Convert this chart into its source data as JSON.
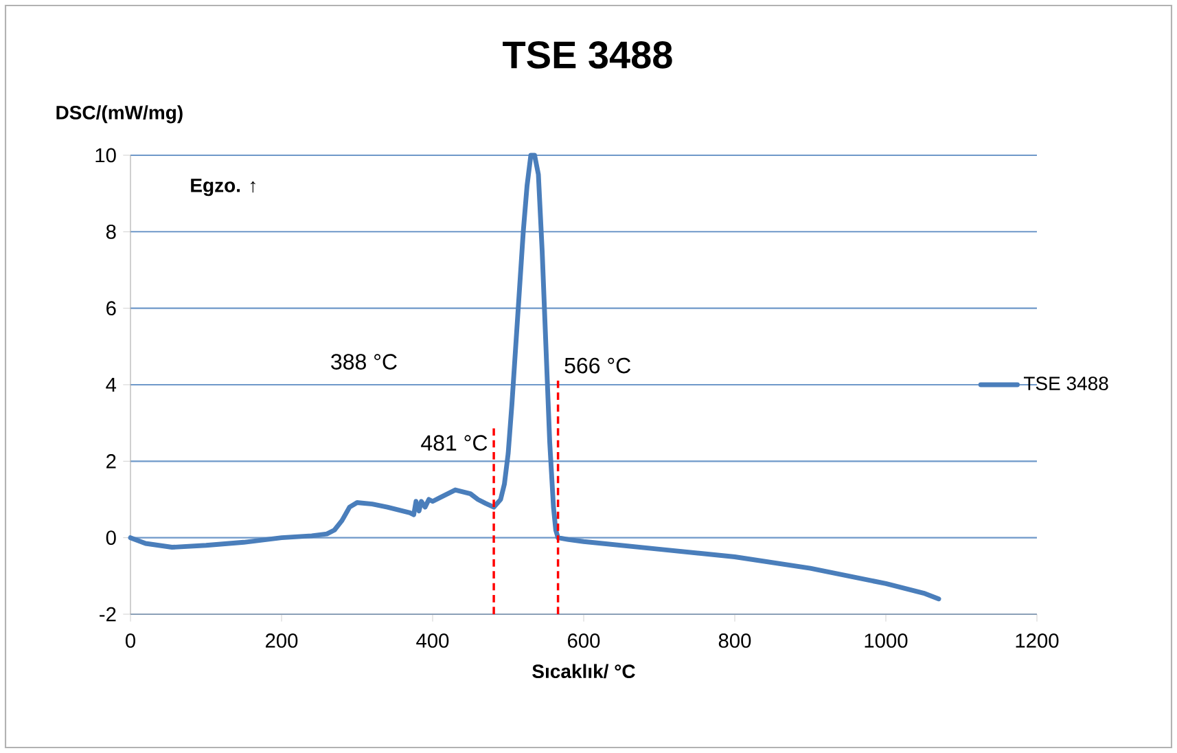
{
  "chart_data": {
    "type": "line",
    "title": "TSE 3488",
    "xlabel": "Sıcaklık/  °C",
    "ylabel": "DSC/(mW/mg)",
    "xlim": [
      0,
      1200
    ],
    "xticks": [
      0,
      200,
      400,
      600,
      800,
      1000,
      1200
    ],
    "ylim": [
      -2,
      10
    ],
    "yticks": [
      -2,
      0,
      2,
      4,
      6,
      8,
      10
    ],
    "grid": "y",
    "legend": "right",
    "marker": "none",
    "line_style": "solid",
    "series": [
      {
        "name": "TSE 3488",
        "color": "#4a7ebb",
        "x": [
          0,
          20,
          55,
          100,
          150,
          200,
          240,
          260,
          270,
          280,
          290,
          300,
          320,
          340,
          350,
          360,
          370,
          375,
          378,
          382,
          385,
          390,
          395,
          400,
          410,
          420,
          430,
          440,
          450,
          460,
          470,
          481,
          490,
          495,
          500,
          505,
          510,
          515,
          520,
          525,
          530,
          535,
          540,
          545,
          550,
          555,
          560,
          563,
          566,
          580,
          600,
          700,
          800,
          900,
          1000,
          1050,
          1070
        ],
        "values": [
          0,
          -0.15,
          -0.25,
          -0.2,
          -0.12,
          0,
          0.05,
          0.1,
          0.2,
          0.45,
          0.8,
          0.92,
          0.88,
          0.8,
          0.75,
          0.7,
          0.65,
          0.6,
          0.95,
          0.7,
          0.95,
          0.8,
          1.0,
          0.95,
          1.05,
          1.15,
          1.25,
          1.2,
          1.15,
          1.0,
          0.9,
          0.8,
          1.0,
          1.4,
          2.2,
          3.5,
          5.0,
          6.5,
          8.0,
          9.2,
          10,
          10,
          9.5,
          7.5,
          5.0,
          2.5,
          0.8,
          0.2,
          0,
          -0.05,
          -0.1,
          -0.3,
          -0.5,
          -0.8,
          -1.2,
          -1.45,
          -1.6
        ]
      }
    ],
    "ref_lines": [
      {
        "axis": "x",
        "value": 481,
        "label": "481 °C",
        "color": "#ff0000",
        "line_style": "dashed"
      },
      {
        "axis": "x",
        "value": 566,
        "label": "566 °C",
        "color": "#ff0000",
        "line_style": "dashed"
      }
    ],
    "annotations": [
      "388 °C",
      "Egzo. ↑"
    ]
  }
}
